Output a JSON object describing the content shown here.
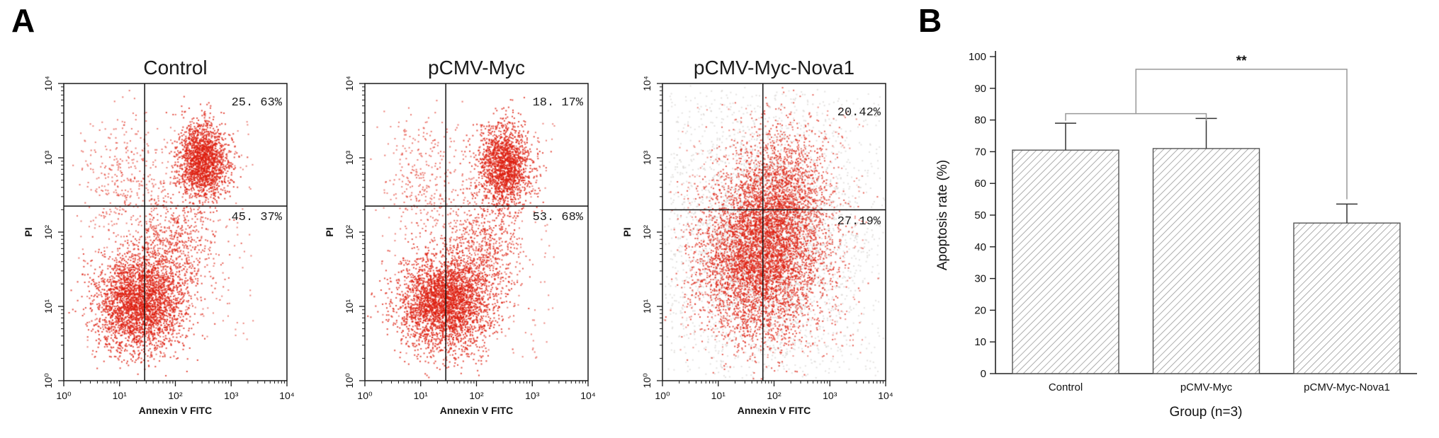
{
  "panels": {
    "a": {
      "label": "A"
    },
    "b": {
      "label": "B"
    }
  },
  "chart_data": [
    {
      "type": "scatter",
      "kind": "flow-cytometry",
      "title": "Control",
      "xlabel": "Annexin V FITC",
      "ylabel": "PI",
      "x_ticks": [
        "10⁰",
        "10¹",
        "10²",
        "10³",
        "10⁴"
      ],
      "y_ticks": [
        "10⁰",
        "10¹",
        "10²",
        "10³",
        "10⁴"
      ],
      "xlim_log": [
        0,
        4
      ],
      "ylim_log": [
        0,
        4
      ],
      "quadrant_x_log": 1.45,
      "quadrant_y_log": 2.35,
      "quadrant_labels": {
        "upper_right": "25. 63%",
        "lower_right": "45. 37%"
      },
      "dot_color": "#dd1f10",
      "clusters": [
        {
          "n": 3000,
          "cx": 1.35,
          "cy": 1.05,
          "sx": 0.4,
          "sy": 0.33,
          "alpha": 0.8
        },
        {
          "n": 600,
          "cx": 2.0,
          "cy": 1.8,
          "sx": 0.35,
          "sy": 0.35,
          "alpha": 0.7
        },
        {
          "n": 1800,
          "cx": 2.5,
          "cy": 2.95,
          "sx": 0.23,
          "sy": 0.27,
          "alpha": 0.8
        },
        {
          "n": 320,
          "cx": 1.15,
          "cy": 2.7,
          "sx": 0.4,
          "sy": 0.45,
          "alpha": 0.6
        },
        {
          "type": "uniform",
          "n": 260,
          "x0": 0.3,
          "x1": 3.4,
          "y0": 0.3,
          "y1": 3.5,
          "alpha": 0.55
        }
      ]
    },
    {
      "type": "scatter",
      "kind": "flow-cytometry",
      "title": "pCMV-Myc",
      "xlabel": "Annexin V FITC",
      "ylabel": "PI",
      "x_ticks": [
        "10⁰",
        "10¹",
        "10²",
        "10³",
        "10⁴"
      ],
      "y_ticks": [
        "10⁰",
        "10¹",
        "10²",
        "10³",
        "10⁴"
      ],
      "xlim_log": [
        0,
        4
      ],
      "ylim_log": [
        0,
        4
      ],
      "quadrant_x_log": 1.45,
      "quadrant_y_log": 2.35,
      "quadrant_labels": {
        "upper_right": "18. 17%",
        "lower_right": "53. 68%"
      },
      "dot_color": "#dd1f10",
      "clusters": [
        {
          "n": 3200,
          "cx": 1.45,
          "cy": 1.05,
          "sx": 0.42,
          "sy": 0.33,
          "alpha": 0.8
        },
        {
          "n": 600,
          "cx": 2.1,
          "cy": 1.8,
          "sx": 0.35,
          "sy": 0.35,
          "alpha": 0.7
        },
        {
          "n": 1700,
          "cx": 2.5,
          "cy": 2.9,
          "sx": 0.24,
          "sy": 0.28,
          "alpha": 0.8
        },
        {
          "n": 280,
          "cx": 1.1,
          "cy": 2.7,
          "sx": 0.38,
          "sy": 0.45,
          "alpha": 0.6
        },
        {
          "type": "uniform",
          "n": 260,
          "x0": 0.3,
          "x1": 3.4,
          "y0": 0.3,
          "y1": 3.5,
          "alpha": 0.55
        }
      ]
    },
    {
      "type": "scatter",
      "kind": "flow-cytometry",
      "title": "pCMV-Myc-Nova1",
      "xlabel": "Annexin V FITC",
      "ylabel": "PI",
      "x_ticks": [
        "10⁰",
        "10¹",
        "10²",
        "10³",
        "10⁴"
      ],
      "y_ticks": [
        "10⁰",
        "10¹",
        "10²",
        "10³",
        "10⁴"
      ],
      "xlim_log": [
        0,
        4
      ],
      "ylim_log": [
        0,
        4
      ],
      "quadrant_x_log": 1.8,
      "quadrant_y_log": 2.3,
      "quadrant_labels": {
        "upper_right": "20.42%",
        "lower_right": "27.19%"
      },
      "dot_color": "#dd1f10",
      "clusters": [
        {
          "type": "uniform",
          "n": 900,
          "color": "#c3bfbb",
          "alpha": 0.45,
          "x0": 0.1,
          "x1": 3.9,
          "y0": 0.1,
          "y1": 3.9
        },
        {
          "n": 2800,
          "color": "#c8c4c0",
          "cx": 1.8,
          "cy": 1.9,
          "sx": 0.8,
          "sy": 0.78,
          "alpha": 0.5
        },
        {
          "n": 4500,
          "cx": 1.75,
          "cy": 1.65,
          "sx": 0.55,
          "sy": 0.55,
          "alpha": 0.75
        },
        {
          "n": 1600,
          "cx": 2.15,
          "cy": 2.5,
          "sx": 0.42,
          "sy": 0.5,
          "alpha": 0.7
        },
        {
          "type": "uniform",
          "n": 400,
          "x0": 0.3,
          "x1": 3.6,
          "y0": 0.3,
          "y1": 3.7,
          "alpha": 0.5
        }
      ]
    },
    {
      "type": "bar",
      "categories": [
        "Control",
        "pCMV-Myc",
        "pCMV-Myc-Nova1"
      ],
      "values": [
        70.5,
        71,
        47.5
      ],
      "errors": [
        8.5,
        9.5,
        6
      ],
      "xlabel": "Group (n=3)",
      "ylabel": "Apoptosis rate (%)",
      "ylim": [
        0,
        100
      ],
      "ytick_step": 10,
      "bar_outline": "#555555",
      "hatch_color": "#9a9a9a",
      "bracket_color": "#999999",
      "significance": {
        "label": "**",
        "groups_joined": [
          0,
          1
        ],
        "versus": 2
      }
    }
  ]
}
